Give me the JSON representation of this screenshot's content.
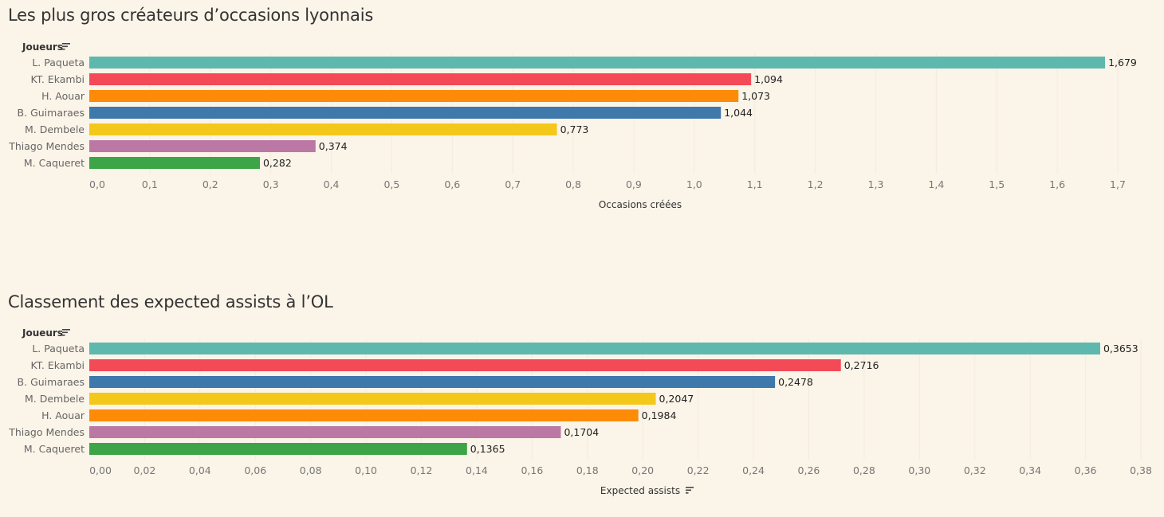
{
  "chart_data": [
    {
      "type": "bar",
      "orientation": "horizontal",
      "title": "Les plus gros créateurs d’occasions lyonnais",
      "row_header": "Joueurs",
      "xlabel": "Occasions créées",
      "ylabel": "Joueurs",
      "xlim": [
        0,
        1.7
      ],
      "tick_step": 0.1,
      "tick_decimals": 1,
      "ticks": [
        "0,0",
        "0,1",
        "0,2",
        "0,3",
        "0,4",
        "0,5",
        "0,6",
        "0,7",
        "0,8",
        "0,9",
        "1,0",
        "1,1",
        "1,2",
        "1,3",
        "1,4",
        "1,5",
        "1,6",
        "1,7"
      ],
      "grid": true,
      "sort_icon_on": "row_header",
      "categories": [
        "L. Paqueta",
        "KT. Ekambi",
        "H. Aouar",
        "B. Guimaraes",
        "M. Dembele",
        "Thiago Mendes",
        "M. Caqueret"
      ],
      "values": [
        1.679,
        1.094,
        1.073,
        1.044,
        0.773,
        0.374,
        0.282
      ],
      "value_labels": [
        "1,679",
        "1,094",
        "1,073",
        "1,044",
        "0,773",
        "0,374",
        "0,282"
      ],
      "colors": [
        "#5fb8ad",
        "#f44a58",
        "#fd8b08",
        "#3f78aa",
        "#f3c81a",
        "#bb78a5",
        "#3da447"
      ]
    },
    {
      "type": "bar",
      "orientation": "horizontal",
      "title": "Classement des expected assists à l’OL",
      "row_header": "Joueurs",
      "xlabel": "Expected assists",
      "ylabel": "Joueurs",
      "xlim": [
        0,
        0.38
      ],
      "tick_step": 0.02,
      "tick_decimals": 2,
      "ticks": [
        "0,00",
        "0,02",
        "0,04",
        "0,06",
        "0,08",
        "0,10",
        "0,12",
        "0,14",
        "0,16",
        "0,18",
        "0,20",
        "0,22",
        "0,24",
        "0,26",
        "0,28",
        "0,30",
        "0,32",
        "0,34",
        "0,36",
        "0,38"
      ],
      "grid": true,
      "sort_icon_on": "both",
      "categories": [
        "L. Paqueta",
        "KT. Ekambi",
        "B. Guimaraes",
        "M. Dembele",
        "H. Aouar",
        "Thiago Mendes",
        "M. Caqueret"
      ],
      "values": [
        0.3653,
        0.2716,
        0.2478,
        0.2047,
        0.1984,
        0.1704,
        0.1365
      ],
      "value_labels": [
        "0,3653",
        "0,2716",
        "0,2478",
        "0,2047",
        "0,1984",
        "0,1704",
        "0,1365"
      ],
      "colors": [
        "#5fb8ad",
        "#f44a58",
        "#3f78aa",
        "#f3c81a",
        "#fd8b08",
        "#bb78a5",
        "#3da447"
      ]
    }
  ],
  "charts": [
    {
      "title": "Les plus gros créateurs d’occasions lyonnais"
    },
    {
      "title": "Classement des expected assists à l’OL"
    }
  ],
  "icons": {
    "sort": "sort-descending-icon"
  }
}
